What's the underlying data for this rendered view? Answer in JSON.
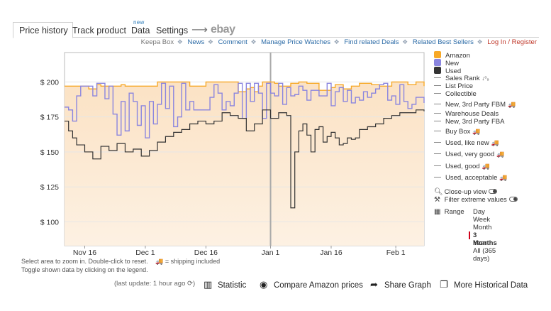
{
  "tabs": {
    "price_history": "Price history",
    "track_product": "Track product",
    "data": "Data",
    "data_badge": "new",
    "settings": "Settings",
    "arrow": "⟶",
    "ebay": "ebay"
  },
  "links": {
    "keepa_box": "Keepa Box",
    "news": "News",
    "comment": "Comment",
    "manage": "Manage Price Watches",
    "deals": "Find related Deals",
    "best": "Related Best Sellers",
    "login": "Log In / Register"
  },
  "legend": {
    "amazon": "Amazon",
    "new": "New",
    "used": "Used",
    "sales_rank": "Sales Rank",
    "sales_rank_icon": "↓⁰₉",
    "list_price": "List Price",
    "collectible": "Collectible",
    "new_fbm": "New, 3rd Party FBM",
    "warehouse": "Warehouse Deals",
    "new_fba": "New, 3rd Party FBA",
    "buy_box": "Buy Box",
    "like_new": "Used, like new",
    "very_good": "Used, very good",
    "good": "Used, good",
    "acceptable": "Used, acceptable",
    "truck": "🚚",
    "colors": {
      "amazon": "#f7a928",
      "new": "#8a85df",
      "used": "#333333"
    }
  },
  "options": {
    "closeup": "Close-up view",
    "filter": "Filter extreme values",
    "range": "Range",
    "ranges": [
      "Day",
      "Week",
      "Month",
      "3 Months",
      "Year",
      "All (365 days)"
    ],
    "active_range": "3 Months"
  },
  "notes": {
    "line1": "Select area to zoom in. Double-click to reset.",
    "shipping": "= shipping included",
    "line2": "Toggle shown data by clicking on the legend."
  },
  "toolbar": {
    "last_update": "(last update: 1 hour ago ⟳)",
    "statistic": "Statistic",
    "compare": "Compare Amazon prices",
    "share": "Share Graph",
    "history": "More Historical Data"
  },
  "chart_data": {
    "type": "line",
    "y_ticks": [
      "$ 200",
      "$ 175",
      "$ 150",
      "$ 125",
      "$ 100"
    ],
    "y_tick_values": [
      200,
      175,
      150,
      125,
      100
    ],
    "ylim": [
      83,
      221
    ],
    "x_ticks": [
      "Nov 16",
      "Dec 1",
      "Dec 16",
      "Jan 1",
      "Jan 16",
      "Feb 1"
    ],
    "x_tick_days": [
      0,
      15,
      30,
      46,
      61,
      77
    ],
    "xlim": [
      -5,
      84
    ],
    "today_marker_day": 46,
    "series": [
      {
        "name": "Amazon",
        "points": [
          [
            -5,
            197
          ],
          [
            0,
            197
          ],
          [
            1,
            195
          ],
          [
            3,
            198
          ],
          [
            4,
            197
          ],
          [
            9,
            198
          ],
          [
            10,
            197
          ],
          [
            18,
            200
          ],
          [
            24,
            200
          ],
          [
            26,
            197
          ],
          [
            28,
            197
          ],
          [
            30,
            200
          ],
          [
            36,
            200
          ],
          [
            38,
            193
          ],
          [
            40,
            195
          ],
          [
            41,
            196
          ],
          [
            42,
            193
          ],
          [
            43,
            197
          ],
          [
            44,
            200
          ],
          [
            46,
            200
          ],
          [
            47,
            199
          ],
          [
            48,
            197
          ],
          [
            51,
            199
          ],
          [
            53,
            200
          ],
          [
            55,
            199
          ],
          [
            58,
            194
          ],
          [
            61,
            196
          ],
          [
            62,
            198
          ],
          [
            64,
            195
          ],
          [
            66,
            197
          ],
          [
            68,
            199
          ],
          [
            71,
            198
          ],
          [
            73,
            197
          ],
          [
            76,
            200
          ],
          [
            78,
            200
          ],
          [
            80,
            198
          ],
          [
            82,
            200
          ],
          [
            84,
            197
          ]
        ]
      },
      {
        "name": "New",
        "points": [
          [
            -5,
            182
          ],
          [
            -4,
            180
          ],
          [
            -3,
            172
          ],
          [
            -2,
            190
          ],
          [
            -1,
            197
          ],
          [
            2,
            190
          ],
          [
            3,
            199
          ],
          [
            5,
            188
          ],
          [
            6,
            197
          ],
          [
            7,
            177
          ],
          [
            8,
            162
          ],
          [
            9,
            186
          ],
          [
            10,
            165
          ],
          [
            11,
            192
          ],
          [
            12,
            186
          ],
          [
            13,
            169
          ],
          [
            14,
            183
          ],
          [
            15,
            160
          ],
          [
            16,
            186
          ],
          [
            17,
            170
          ],
          [
            18,
            184
          ],
          [
            19,
            199
          ],
          [
            20,
            181
          ],
          [
            21,
            197
          ],
          [
            22,
            168
          ],
          [
            23,
            175
          ],
          [
            24,
            199
          ],
          [
            25,
            180
          ],
          [
            26,
            186
          ],
          [
            27,
            180
          ],
          [
            30,
            180
          ],
          [
            31,
            189
          ],
          [
            32,
            198
          ],
          [
            33,
            192
          ],
          [
            34,
            180
          ],
          [
            35,
            186
          ],
          [
            36,
            183
          ],
          [
            37,
            192
          ],
          [
            38,
            199
          ],
          [
            39,
            174
          ],
          [
            40,
            199
          ],
          [
            41,
            186
          ],
          [
            42,
            199
          ],
          [
            43,
            192
          ],
          [
            44,
            174
          ],
          [
            45,
            199
          ],
          [
            46,
            192
          ],
          [
            47,
            190
          ],
          [
            48,
            199
          ],
          [
            49,
            184
          ],
          [
            50,
            196
          ],
          [
            51,
            190
          ],
          [
            52,
            191
          ],
          [
            53,
            197
          ],
          [
            54,
            194
          ],
          [
            55,
            187
          ],
          [
            56,
            194
          ],
          [
            58,
            190
          ],
          [
            60,
            199
          ],
          [
            61,
            183
          ],
          [
            62,
            193
          ],
          [
            63,
            196
          ],
          [
            64,
            186
          ],
          [
            65,
            194
          ],
          [
            66,
            185
          ],
          [
            67,
            189
          ],
          [
            68,
            187
          ],
          [
            69,
            193
          ],
          [
            70,
            189
          ],
          [
            71,
            192
          ],
          [
            72,
            195
          ],
          [
            73,
            198
          ],
          [
            74,
            199
          ],
          [
            75,
            187
          ],
          [
            76,
            190
          ],
          [
            77,
            184
          ],
          [
            78,
            198
          ],
          [
            79,
            186
          ],
          [
            80,
            181
          ],
          [
            81,
            184
          ],
          [
            82,
            189
          ],
          [
            84,
            185
          ]
        ]
      },
      {
        "name": "Used",
        "points": [
          [
            -5,
            172
          ],
          [
            -4,
            165
          ],
          [
            -3,
            160
          ],
          [
            -2,
            155
          ],
          [
            0,
            150
          ],
          [
            2,
            145
          ],
          [
            4,
            154
          ],
          [
            6,
            151
          ],
          [
            8,
            156
          ],
          [
            10,
            150
          ],
          [
            12,
            152
          ],
          [
            14,
            147
          ],
          [
            16,
            151
          ],
          [
            18,
            157
          ],
          [
            20,
            161
          ],
          [
            22,
            164
          ],
          [
            24,
            166
          ],
          [
            26,
            170
          ],
          [
            28,
            172
          ],
          [
            30,
            170
          ],
          [
            32,
            172
          ],
          [
            34,
            178
          ],
          [
            36,
            176
          ],
          [
            38,
            174
          ],
          [
            40,
            165
          ],
          [
            42,
            170
          ],
          [
            44,
            180
          ],
          [
            46,
            174
          ],
          [
            48,
            178
          ],
          [
            50,
            176
          ],
          [
            51,
            110
          ],
          [
            52,
            150
          ],
          [
            53,
            165
          ],
          [
            54,
            170
          ],
          [
            55,
            162
          ],
          [
            56,
            150
          ],
          [
            57,
            166
          ],
          [
            58,
            168
          ],
          [
            59,
            157
          ],
          [
            60,
            161
          ],
          [
            61,
            164
          ],
          [
            62,
            160
          ],
          [
            63,
            155
          ],
          [
            64,
            156
          ],
          [
            65,
            160
          ],
          [
            66,
            159
          ],
          [
            67,
            160
          ],
          [
            68,
            166
          ],
          [
            70,
            168
          ],
          [
            72,
            170
          ],
          [
            74,
            174
          ],
          [
            76,
            176
          ],
          [
            78,
            178
          ],
          [
            80,
            178
          ],
          [
            82,
            180
          ],
          [
            84,
            179
          ]
        ]
      }
    ]
  }
}
